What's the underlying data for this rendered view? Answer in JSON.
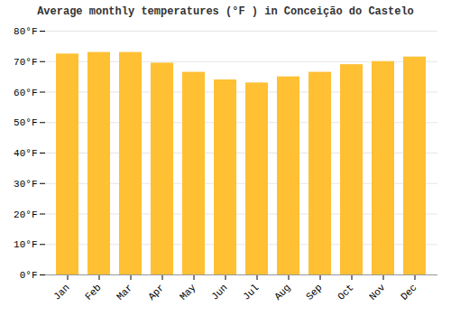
{
  "chart_data": {
    "type": "bar",
    "title": "Average monthly temperatures (°F ) in Conceição do Castelo",
    "categories": [
      "Jan",
      "Feb",
      "Mar",
      "Apr",
      "May",
      "Jun",
      "Jul",
      "Aug",
      "Sep",
      "Oct",
      "Nov",
      "Dec"
    ],
    "values": [
      72.5,
      73.0,
      73.0,
      69.5,
      66.5,
      64.0,
      63.0,
      65.0,
      66.5,
      69.0,
      70.0,
      71.5
    ],
    "color": "#FFC033",
    "ylim": [
      0,
      80
    ],
    "yticks": [
      {
        "value": 0,
        "label": "0°F"
      },
      {
        "value": 10,
        "label": "10°F"
      },
      {
        "value": 20,
        "label": "20°F"
      },
      {
        "value": 30,
        "label": "30°F"
      },
      {
        "value": 40,
        "label": "40°F"
      },
      {
        "value": 50,
        "label": "50°F"
      },
      {
        "value": 60,
        "label": "60°F"
      },
      {
        "value": 70,
        "label": "70°F"
      },
      {
        "value": 80,
        "label": "80°F"
      }
    ],
    "grid": true
  }
}
